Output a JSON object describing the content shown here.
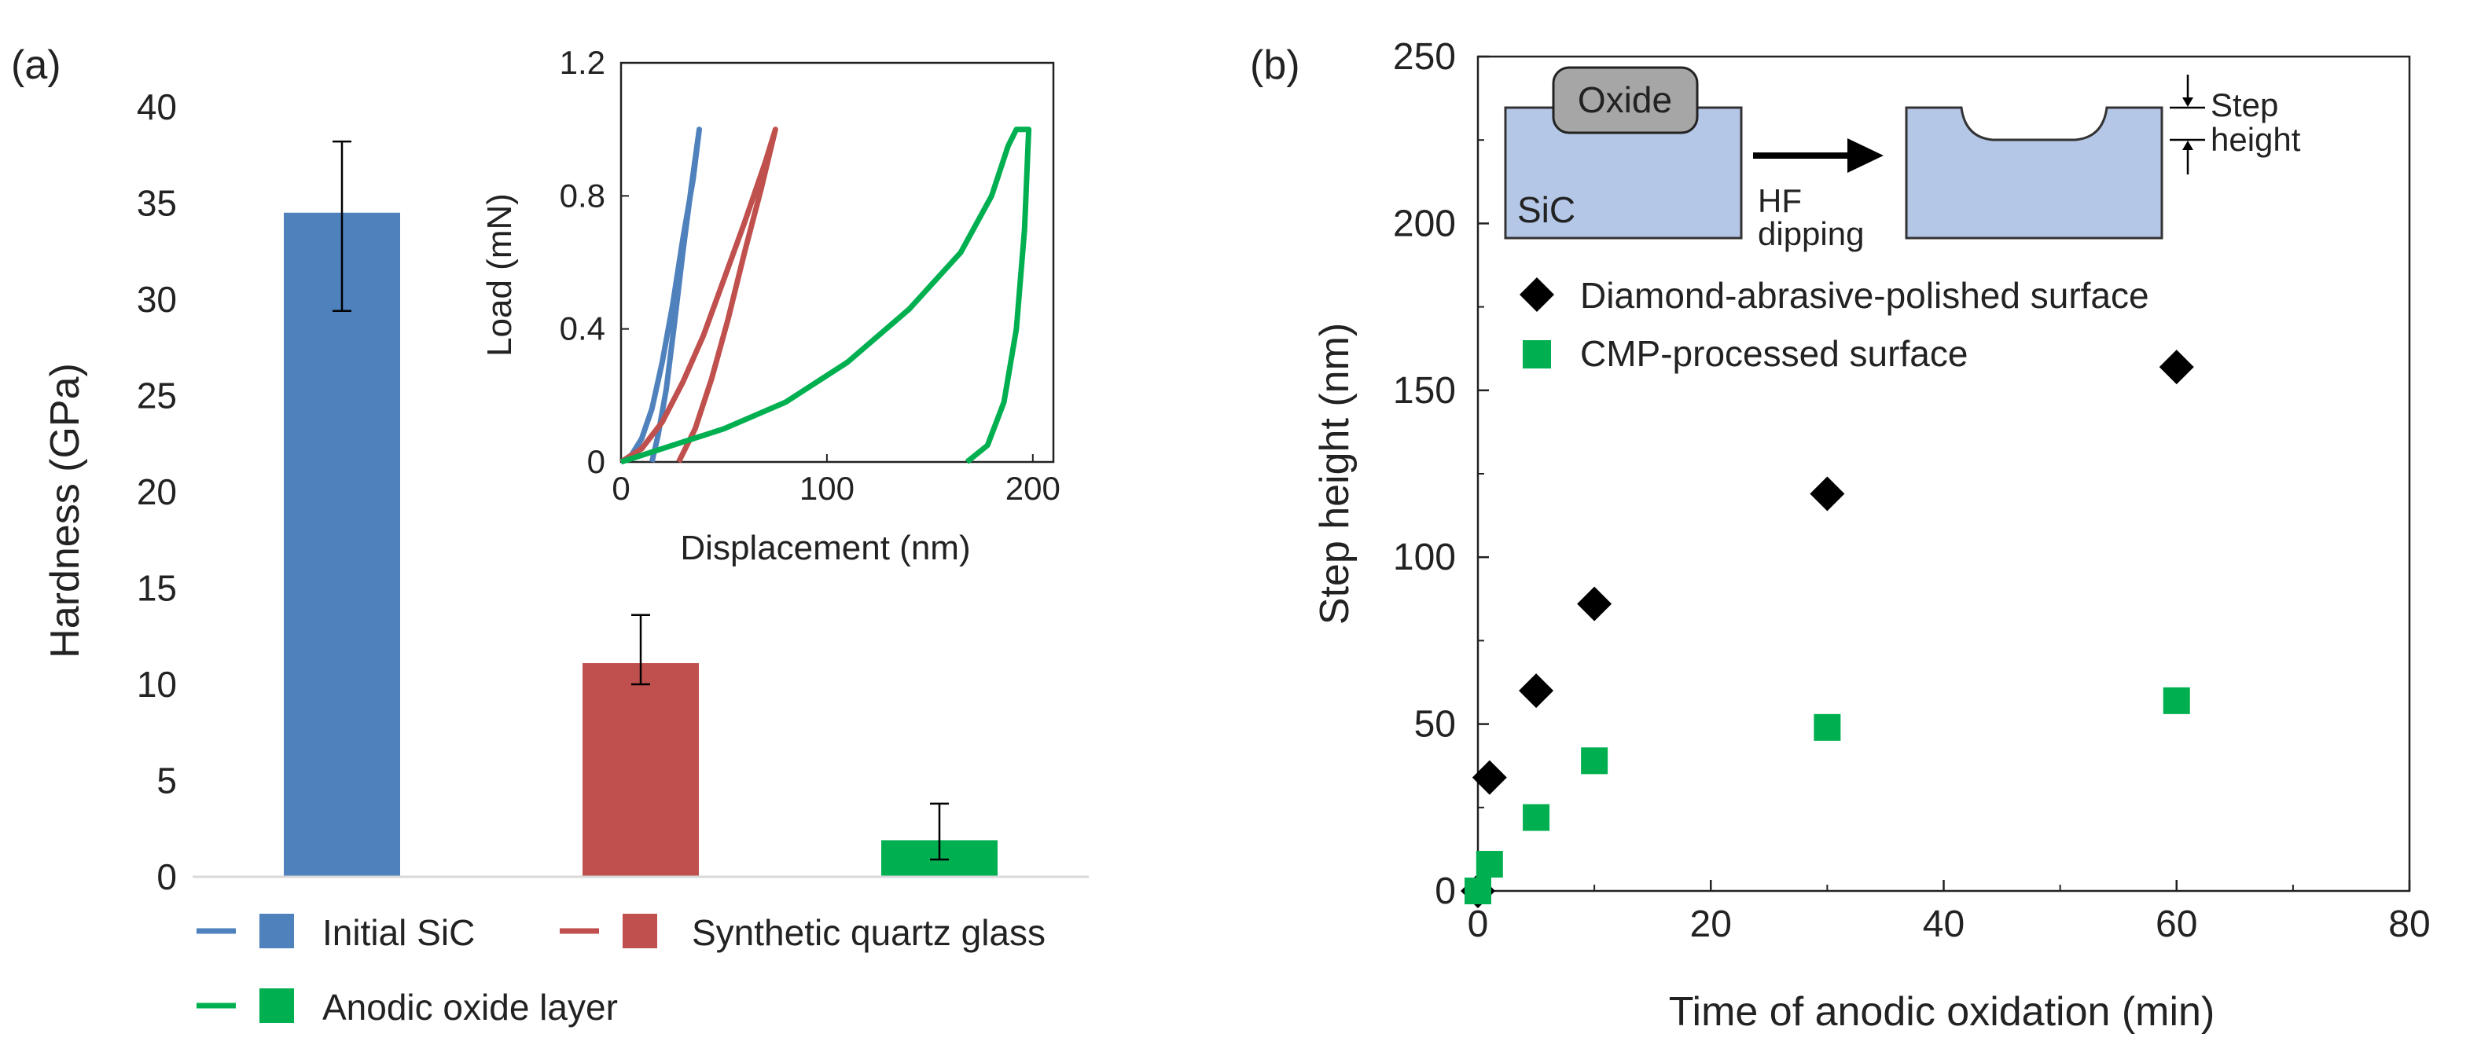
{
  "chart_data": [
    {
      "type": "bar",
      "panel_label": "(a)",
      "ylabel": "Hardness (GPa)",
      "xlabel": "",
      "ylim": [
        0,
        40
      ],
      "yticks": [
        0,
        5,
        10,
        15,
        20,
        25,
        30,
        35,
        40
      ],
      "yticks_labels": [
        "0",
        "5",
        "10",
        "15",
        "20",
        "25",
        "30",
        "35",
        "40"
      ],
      "categories": [
        "Initial SiC",
        "Synthetic quartz glass",
        "Anodic oxide layer"
      ],
      "values": [
        34.5,
        11.1,
        1.9
      ],
      "error_low": [
        29.4,
        10.0,
        0.9
      ],
      "error_high": [
        38.2,
        13.6,
        3.8
      ],
      "colors": [
        "#4f81bd",
        "#c0504d",
        "#00b050"
      ],
      "legend": [
        {
          "label": "Initial SiC",
          "color": "#4f81bd"
        },
        {
          "label": "Synthetic quartz glass",
          "color": "#c0504d"
        },
        {
          "label": "Anodic oxide layer",
          "color": "#00b050"
        }
      ],
      "grid": false
    },
    {
      "type": "line",
      "inset_of": "(a)",
      "xlabel": "Displacement (nm)",
      "ylabel": "Load (mN)",
      "xlim": [
        0,
        210
      ],
      "ylim": [
        0,
        1.2
      ],
      "xticks": [
        0,
        100,
        200
      ],
      "xticks_labels": [
        "0",
        "100",
        "200"
      ],
      "yticks": [
        0,
        0.4,
        0.8,
        1.2
      ],
      "yticks_labels": [
        "0",
        "0.4",
        "0.8",
        "1.2"
      ],
      "series": [
        {
          "name": "Initial SiC",
          "color": "#4f81bd",
          "loading": [
            [
              0,
              0
            ],
            [
              5,
              0.02
            ],
            [
              10,
              0.07
            ],
            [
              15,
              0.16
            ],
            [
              20,
              0.3
            ],
            [
              25,
              0.47
            ],
            [
              30,
              0.67
            ],
            [
              35,
              0.85
            ],
            [
              38,
              1.0
            ]
          ],
          "unloading": [
            [
              38,
              1.0
            ],
            [
              34,
              0.82
            ],
            [
              30,
              0.63
            ],
            [
              26,
              0.42
            ],
            [
              22,
              0.22
            ],
            [
              18,
              0.08
            ],
            [
              15,
              0.0
            ]
          ]
        },
        {
          "name": "Synthetic quartz glass",
          "color": "#c0504d",
          "loading": [
            [
              0,
              0
            ],
            [
              10,
              0.04
            ],
            [
              20,
              0.12
            ],
            [
              30,
              0.24
            ],
            [
              40,
              0.38
            ],
            [
              50,
              0.55
            ],
            [
              60,
              0.72
            ],
            [
              70,
              0.9
            ],
            [
              75,
              1.0
            ]
          ],
          "unloading": [
            [
              75,
              1.0
            ],
            [
              68,
              0.82
            ],
            [
              60,
              0.63
            ],
            [
              52,
              0.43
            ],
            [
              44,
              0.25
            ],
            [
              36,
              0.1
            ],
            [
              28,
              0.0
            ]
          ]
        },
        {
          "name": "Anodic oxide layer",
          "color": "#00b050",
          "loading": [
            [
              0,
              0
            ],
            [
              20,
              0.04
            ],
            [
              50,
              0.1
            ],
            [
              80,
              0.18
            ],
            [
              110,
              0.3
            ],
            [
              140,
              0.46
            ],
            [
              165,
              0.63
            ],
            [
              180,
              0.8
            ],
            [
              188,
              0.95
            ],
            [
              192,
              1.0
            ]
          ],
          "hold": [
            [
              192,
              1.0
            ],
            [
              198,
              1.0
            ]
          ],
          "unloading": [
            [
              198,
              1.0
            ],
            [
              196,
              0.7
            ],
            [
              192,
              0.4
            ],
            [
              186,
              0.18
            ],
            [
              178,
              0.05
            ],
            [
              168,
              0.0
            ]
          ]
        }
      ],
      "grid": false
    },
    {
      "type": "scatter",
      "panel_label": "(b)",
      "xlabel": "Time of anodic oxidation (min)",
      "ylabel": "Step height (nm)",
      "xlim": [
        0,
        80
      ],
      "ylim": [
        0,
        250
      ],
      "xticks": [
        0,
        20,
        40,
        60,
        80
      ],
      "xticks_labels": [
        "0",
        "20",
        "40",
        "60",
        "80"
      ],
      "yticks": [
        0,
        50,
        100,
        150,
        200,
        250
      ],
      "yticks_labels": [
        "0",
        "50",
        "100",
        "150",
        "200",
        "250"
      ],
      "series": [
        {
          "name": "Diamond-abrasive-polished surface",
          "marker": "diamond",
          "color": "#000000",
          "x": [
            0,
            1,
            5,
            10,
            30,
            60
          ],
          "y": [
            0,
            34,
            60,
            86,
            119,
            157
          ]
        },
        {
          "name": "CMP-processed surface",
          "marker": "square",
          "color": "#00b050",
          "x": [
            0,
            1,
            5,
            10,
            30,
            60
          ],
          "y": [
            0,
            8,
            22,
            39,
            49,
            57
          ]
        }
      ],
      "schematic": {
        "oxide_label": "Oxide",
        "sic_label": "SiC",
        "hf_label_line1": "HF",
        "hf_label_line2": "dipping",
        "step_label_line1": "Step",
        "step_label_line2": "height"
      },
      "grid": false
    }
  ]
}
